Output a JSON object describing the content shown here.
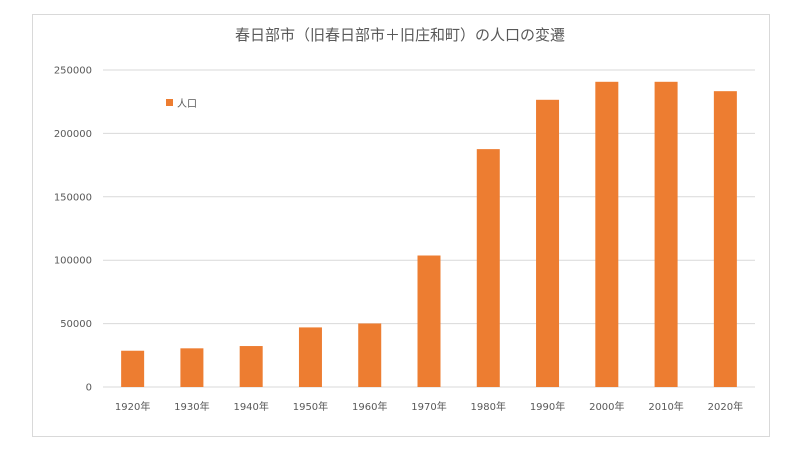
{
  "chart_data": {
    "type": "bar",
    "title": "春日部市（旧春日部市＋旧庄和町）の人口の変遷",
    "categories": [
      "1920年",
      "1930年",
      "1940年",
      "1950年",
      "1960年",
      "1970年",
      "1980年",
      "1990年",
      "2000年",
      "2010年",
      "2020年"
    ],
    "series": [
      {
        "name": "人口",
        "color": "#ED7D31",
        "values": [
          28600,
          30500,
          32300,
          47000,
          50100,
          103700,
          187600,
          226500,
          240700,
          240700,
          233300
        ]
      }
    ],
    "xlabel": "",
    "ylabel": "",
    "ylim": [
      0,
      250000
    ],
    "yticks": [
      0,
      50000,
      100000,
      150000,
      200000,
      250000
    ],
    "grid": true,
    "legend": "top-left"
  }
}
